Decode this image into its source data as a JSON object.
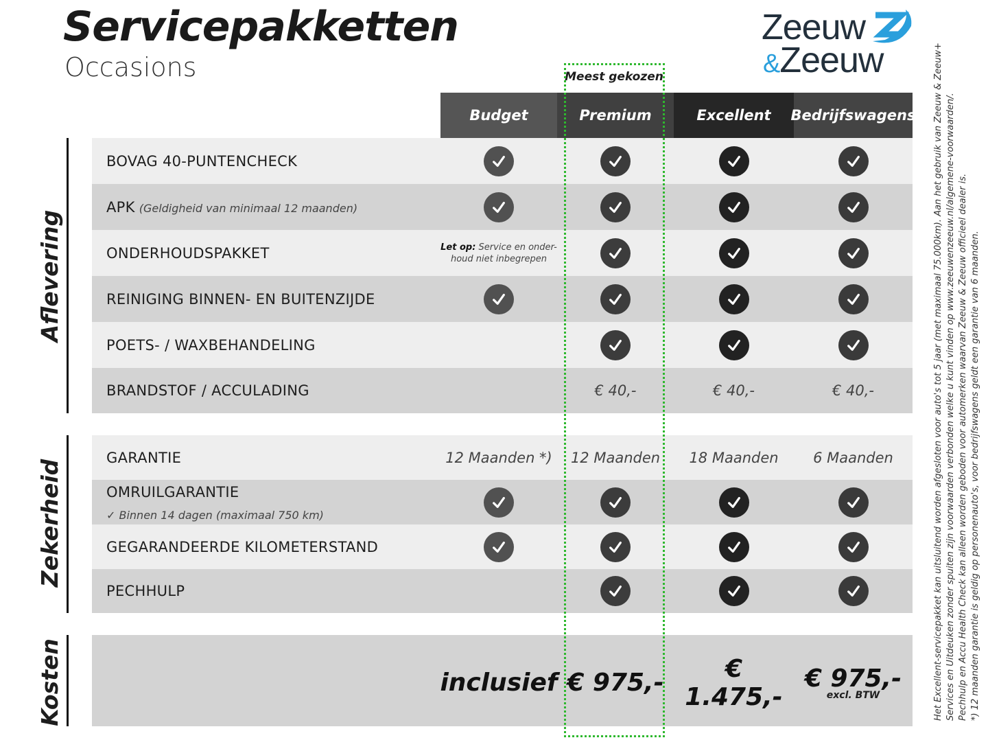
{
  "header": {
    "title": "Servicepakketten",
    "subtitle": "Occasions",
    "logo": "Zeeuw & Zeeuw",
    "logo_line1": "Zeeuw",
    "logo_amp": "&",
    "logo_line2": "Zeeuw"
  },
  "badge": "Meest gekozen",
  "columns": [
    "Budget",
    "Premium",
    "Excellent",
    "Bedrijfswagens"
  ],
  "colors": {
    "highlight": "#2eb82e",
    "logo_blue": "#2a9fdc",
    "logo_dark": "#23303c"
  },
  "sections": {
    "aflevering": "Aflevering",
    "zekerheid": "Zekerheid",
    "kosten": "Kosten"
  },
  "rows": [
    {
      "label": "BOVAG 40-PUNTENCHECK",
      "cells": [
        "check",
        "check",
        "check",
        "check"
      ]
    },
    {
      "label": "APK",
      "note": "(Geldigheid van minimaal 12 maanden)",
      "cells": [
        "check",
        "check",
        "check",
        "check"
      ]
    },
    {
      "label": "ONDERHOUDSPAKKET",
      "budget_note_bold": "Let op:",
      "budget_note": "Service en onder- houd niet inbegrepen",
      "cells": [
        "note",
        "check",
        "check",
        "check"
      ]
    },
    {
      "label": "REINIGING BINNEN- EN BUITENZIJDE",
      "cells": [
        "check",
        "check",
        "check",
        "check"
      ]
    },
    {
      "label": "POETS- / WAXBEHANDELING",
      "cells": [
        "",
        "check",
        "check",
        "check"
      ]
    },
    {
      "label": "BRANDSTOF / ACCULADING",
      "cells": [
        "",
        "€ 40,-",
        "€ 40,-",
        "€ 40,-"
      ]
    },
    {
      "label": "GARANTIE",
      "cells": [
        "12 Maanden *)",
        "12 Maanden",
        "18 Maanden",
        "6 Maanden"
      ]
    },
    {
      "label": "OMRUILGARANTIE",
      "sub": "✓  Binnen 14 dagen (maximaal 750 km)",
      "cells": [
        "check",
        "check",
        "check",
        "check"
      ]
    },
    {
      "label": "GEGARANDEERDE KILOMETERSTAND",
      "cells": [
        "check",
        "check",
        "check",
        "check"
      ]
    },
    {
      "label": "PECHHULP",
      "cells": [
        "",
        "check",
        "check",
        "check"
      ]
    }
  ],
  "costs": {
    "cells": [
      "inclusief",
      "€ 975,-",
      "€ 1.475,-",
      "€ 975,-"
    ],
    "btw": "excl. BTW"
  },
  "footnotes": [
    "Het Excellent-servicepakket kan uitsluitend worden afgesloten voor auto's tot 5 jaar (met maximaal 75.000km). Aan het gebruik van Zeeuw & Zeeuw+",
    "Services en Uitdeuken zonder spuiten zijn voorwaarden verbonden welke u kunt vinden op www.zeeuwenzeeuw.nl/algemene-voorwaarden/.",
    "Pechhulp en Accu Health Check kan alleen worden geboden voor automerken waarvan Zeeuw & Zeeuw officieel dealer is.",
    "*) 12 maanden garantie is geldig op personenauto's, voor bedrijfswagens geldt een garantie van 6 maanden."
  ]
}
